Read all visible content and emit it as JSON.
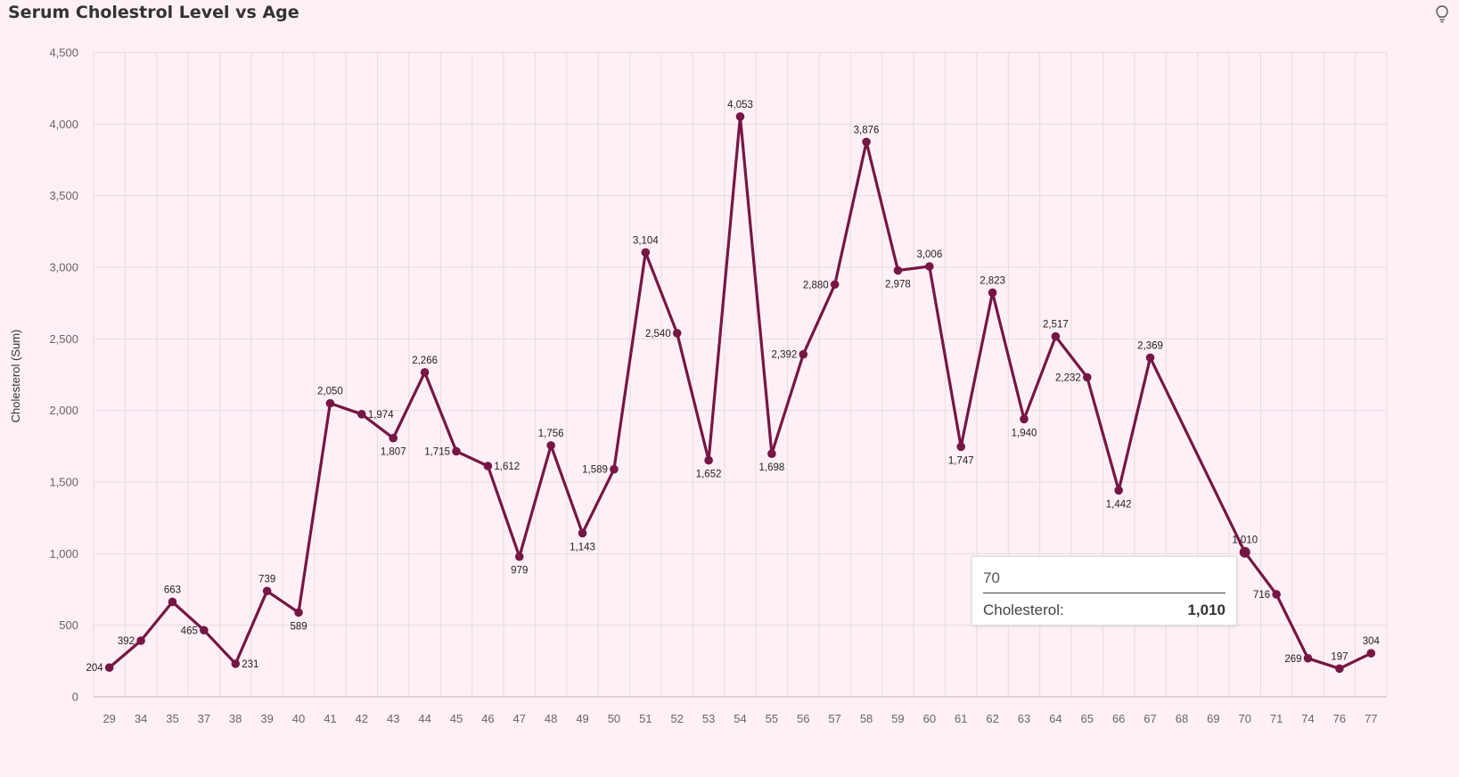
{
  "header": {
    "title": "Serum Cholestrol Level vs Age",
    "insight_icon": "lightbulb-icon"
  },
  "tooltip": {
    "category": "70",
    "series_label": "Cholesterol:",
    "value": "1,010"
  },
  "colors": {
    "background": "#fdf0f6",
    "line": "#761644",
    "grid": "#e3dde1"
  },
  "chart_data": {
    "type": "line",
    "title": "Serum Cholestrol Level vs Age",
    "xlabel": "",
    "ylabel": "Cholesterol (Sum)",
    "ylim": [
      0,
      4500
    ],
    "yticks": [
      "0",
      "500",
      "1,000",
      "1,500",
      "2,000",
      "2,500",
      "3,000",
      "3,500",
      "4,000",
      "4,500"
    ],
    "grid": true,
    "categories": [
      "29",
      "34",
      "35",
      "37",
      "38",
      "39",
      "40",
      "41",
      "42",
      "43",
      "44",
      "45",
      "46",
      "47",
      "48",
      "49",
      "50",
      "51",
      "52",
      "53",
      "54",
      "55",
      "56",
      "57",
      "58",
      "59",
      "60",
      "61",
      "62",
      "63",
      "64",
      "65",
      "66",
      "67",
      "68",
      "69",
      "70",
      "71",
      "74",
      "76",
      "77"
    ],
    "values": [
      204,
      392,
      663,
      465,
      231,
      739,
      589,
      2050,
      1974,
      1807,
      2266,
      1715,
      1612,
      979,
      1756,
      1143,
      1589,
      3104,
      2540,
      1652,
      4053,
      1698,
      2392,
      2880,
      3876,
      2978,
      3006,
      1747,
      2823,
      1940,
      2517,
      2232,
      1442,
      2369,
      null,
      null,
      1010,
      716,
      269,
      197,
      304
    ],
    "labels": [
      "204",
      "392",
      "663",
      "465",
      "231",
      "739",
      "589",
      "2,050",
      "1,974",
      "1,807",
      "2,266",
      "1,715",
      "1,612",
      "979",
      "1,756",
      "1,143",
      "1,589",
      "3,104",
      "2,540",
      "1,652",
      "4,053",
      "1,698",
      "2,392",
      "2,880",
      "3,876",
      "2,978",
      "3,006",
      "1,747",
      "2,823",
      "1,940",
      "2,517",
      "2,232",
      "1,442",
      "2,369",
      "",
      "",
      "1,010",
      "716",
      "269",
      "197",
      "304"
    ],
    "label_pos": [
      "l",
      "l",
      "a",
      "l",
      "r",
      "a",
      "b",
      "a",
      "r",
      "b",
      "a",
      "l",
      "r",
      "b",
      "a",
      "b",
      "l",
      "a",
      "l",
      "b",
      "a",
      "b",
      "l",
      "l",
      "a",
      "b",
      "a",
      "b",
      "a",
      "b",
      "a",
      "l",
      "b",
      "a",
      "",
      "",
      "a",
      "l",
      "l",
      "a",
      "a"
    ]
  }
}
